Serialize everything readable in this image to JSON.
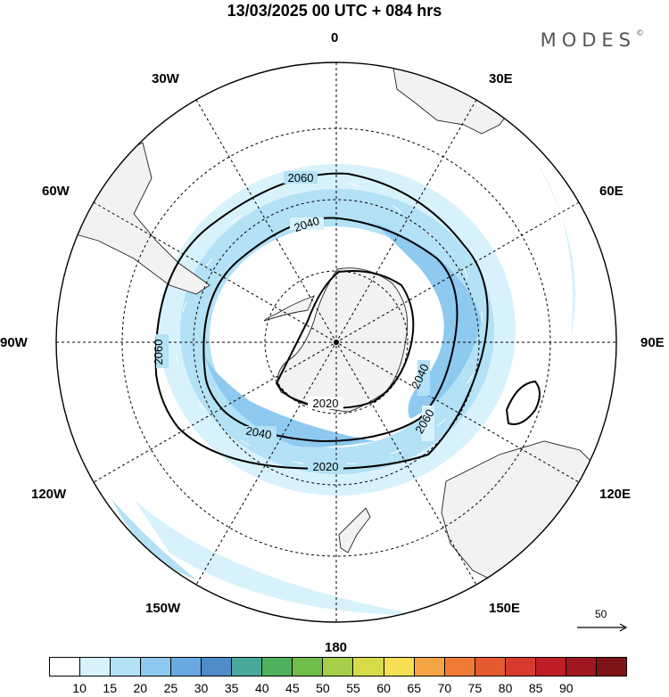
{
  "title": "13/03/2025  00 UTC  + 084 hrs",
  "brand": "MODES",
  "brand_mark": "©",
  "map": {
    "projection": "polar stereographic, South Pole centered",
    "longitude_labels": {
      "top": "0",
      "top_right": "30E",
      "upper_right": "60E",
      "right": "90E",
      "lower_right": "120E",
      "bottom_right": "150E",
      "bottom": "180",
      "bottom_left": "150W",
      "lower_left": "120W",
      "left": "90W",
      "upper_left": "60W",
      "top_left": "30W"
    },
    "contour_labels": [
      "2060",
      "2040",
      "2020",
      "2060",
      "2040",
      "2020",
      "2040",
      "2060",
      "2060",
      "2040"
    ],
    "reference_vector_label": "50"
  },
  "colorbar": {
    "colors": [
      "#ffffff",
      "#d8f2fc",
      "#b3e1f6",
      "#8ec9ef",
      "#6aa9df",
      "#4f8cc9",
      "#48a89a",
      "#4eb25c",
      "#71bd4a",
      "#a6ce48",
      "#d6dc49",
      "#f6de55",
      "#f4a444",
      "#ef7b35",
      "#e55a2e",
      "#d83a2c",
      "#c01e26",
      "#a0171f",
      "#7f1416"
    ],
    "ticks": [
      "10",
      "15",
      "20",
      "25",
      "30",
      "35",
      "40",
      "45",
      "50",
      "55",
      "60",
      "65",
      "70",
      "75",
      "80",
      "85",
      "90"
    ]
  }
}
